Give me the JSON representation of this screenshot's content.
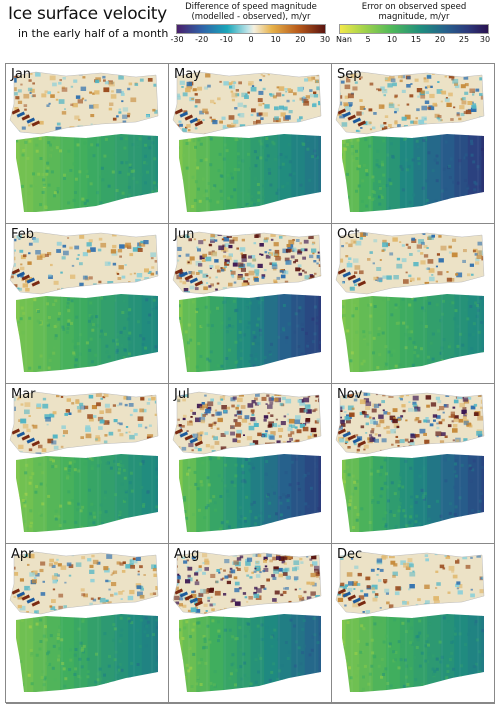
{
  "header": {
    "title": "Ice surface velocity",
    "subtitle": "in the early half of a month"
  },
  "colorbar_difference": {
    "label_line1": "Difference of speed magnitude",
    "label_line2": "(modelled - observed), m/yr",
    "ticks": [
      "-30",
      "-20",
      "-10",
      "0",
      "10",
      "20",
      "30"
    ]
  },
  "colorbar_error": {
    "label_line1": "Error on observed speed",
    "label_line2": "magnitude, m/yr",
    "ticks": [
      "Nan",
      "5",
      "10",
      "15",
      "20",
      "25",
      "30"
    ]
  },
  "panels": [
    {
      "month": "Jan",
      "diff_intensity": 0.25,
      "err_level": 0.35
    },
    {
      "month": "May",
      "diff_intensity": 0.45,
      "err_level": 0.5
    },
    {
      "month": "Sep",
      "diff_intensity": 0.55,
      "err_level": 0.85
    },
    {
      "month": "Feb",
      "diff_intensity": 0.3,
      "err_level": 0.4
    },
    {
      "month": "Jun",
      "diff_intensity": 0.85,
      "err_level": 0.8
    },
    {
      "month": "Oct",
      "diff_intensity": 0.3,
      "err_level": 0.4
    },
    {
      "month": "Mar",
      "diff_intensity": 0.3,
      "err_level": 0.4
    },
    {
      "month": "Jul",
      "diff_intensity": 0.7,
      "err_level": 0.8
    },
    {
      "month": "Nov",
      "diff_intensity": 0.75,
      "err_level": 0.75
    },
    {
      "month": "Apr",
      "diff_intensity": 0.3,
      "err_level": 0.45
    },
    {
      "month": "Aug",
      "diff_intensity": 0.65,
      "err_level": 0.6
    },
    {
      "month": "Dec",
      "diff_intensity": 0.3,
      "err_level": 0.45
    }
  ]
}
